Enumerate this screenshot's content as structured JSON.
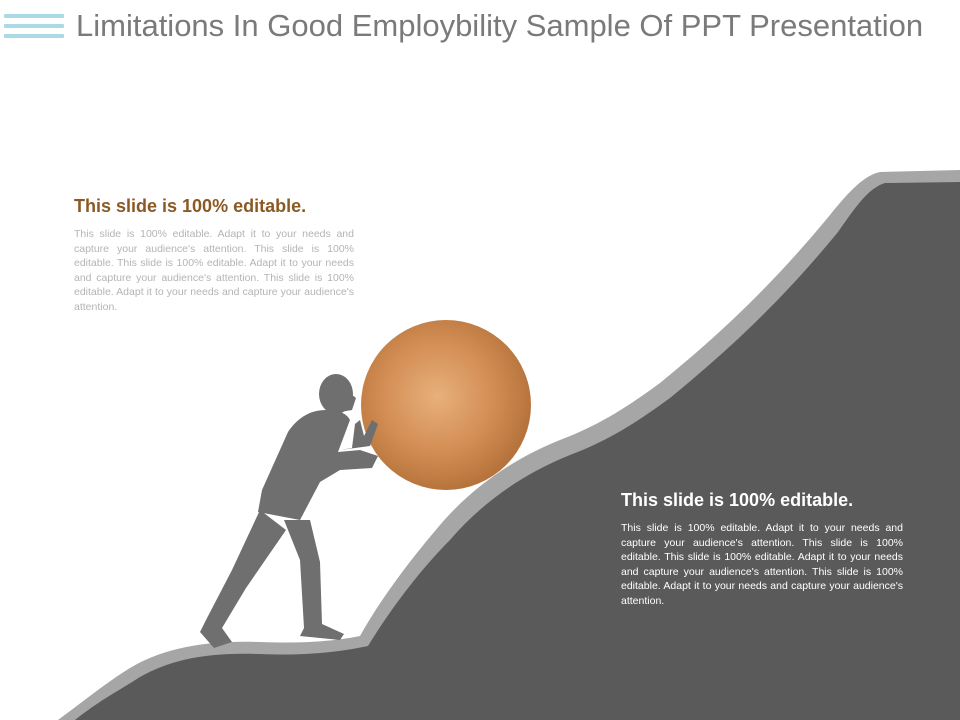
{
  "slide": {
    "title": "Limitations In Good Employbility Sample Of PPT Presentation"
  },
  "text_blocks": {
    "left": {
      "heading": "This slide is 100% editable.",
      "body": "This slide is 100% editable. Adapt it to your needs and capture your audience's attention. This slide is 100% editable. This slide is 100% editable. Adapt it to your needs and capture your audience's attention. This slide is 100% editable. Adapt it to your needs and capture your audience's attention."
    },
    "right": {
      "heading": "This slide is 100% editable.",
      "body": "This slide is 100% editable. Adapt it to your needs and capture your audience's attention. This slide is 100% editable. This slide is 100% editable. Adapt it to your needs and capture your audience's attention. This slide is 100% editable. Adapt it to your needs and capture your audience's attention."
    }
  },
  "colors": {
    "hill_dark": "#5a5a5a",
    "hill_edge": "#a6a6a6",
    "figure": "#6f6f6f",
    "boulder_light": "#e8b07c",
    "boulder_dark": "#b6743c",
    "heading_accent": "#8b5a24",
    "menu_lines": "#a9dbe6"
  },
  "icons": {
    "menu": "hamburger-menu-icon"
  }
}
